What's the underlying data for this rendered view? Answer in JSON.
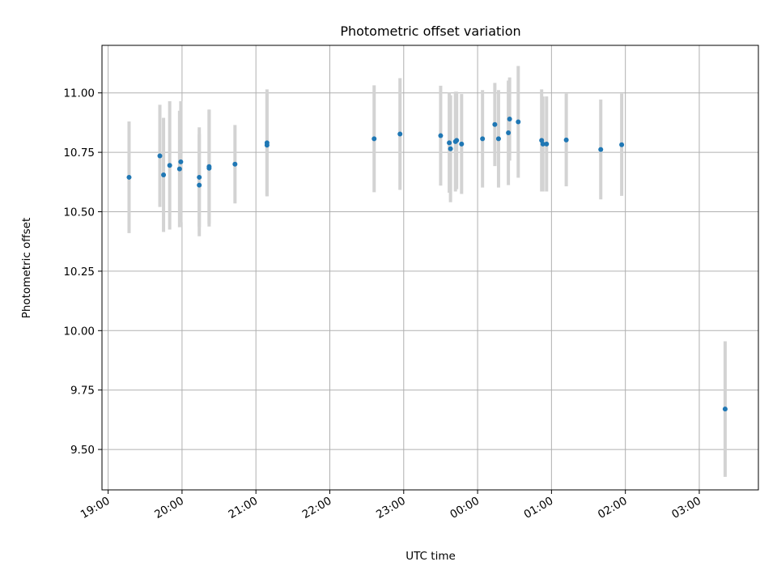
{
  "chart_data": {
    "type": "scatter",
    "title": "Photometric offset variation",
    "xlabel": "UTC time",
    "ylabel": "Photometric offset",
    "grid": true,
    "xlim": [
      "2000-01-01T18:55",
      "2000-01-02T03:48"
    ],
    "ylim": [
      9.33,
      11.2
    ],
    "x_ticks": [
      {
        "t": "2000-01-01T19:00",
        "label": "19:00"
      },
      {
        "t": "2000-01-01T20:00",
        "label": "20:00"
      },
      {
        "t": "2000-01-01T21:00",
        "label": "21:00"
      },
      {
        "t": "2000-01-01T22:00",
        "label": "22:00"
      },
      {
        "t": "2000-01-01T23:00",
        "label": "23:00"
      },
      {
        "t": "2000-01-02T00:00",
        "label": "00:00"
      },
      {
        "t": "2000-01-02T01:00",
        "label": "01:00"
      },
      {
        "t": "2000-01-02T02:00",
        "label": "02:00"
      },
      {
        "t": "2000-01-02T03:00",
        "label": "03:00"
      }
    ],
    "y_ticks": [
      9.5,
      9.75,
      10.0,
      10.25,
      10.5,
      10.75,
      11.0
    ],
    "y_tick_labels": [
      "9.50",
      "9.75",
      "10.00",
      "10.25",
      "10.50",
      "10.75",
      "11.00"
    ],
    "marker_color": "#1f77b4",
    "errorbar_color": "#d3d3d3",
    "series": [
      {
        "points": [
          {
            "t": "2000-01-01T19:17",
            "y": 10.645,
            "err": 0.235
          },
          {
            "t": "2000-01-01T19:42",
            "y": 10.735,
            "err": 0.215
          },
          {
            "t": "2000-01-01T19:45",
            "y": 10.655,
            "err": 0.24
          },
          {
            "t": "2000-01-01T19:50",
            "y": 10.695,
            "err": 0.27
          },
          {
            "t": "2000-01-01T19:58",
            "y": 10.68,
            "err": 0.245
          },
          {
            "t": "2000-01-01T19:59",
            "y": 10.71,
            "err": 0.255
          },
          {
            "t": "2000-01-01T20:14",
            "y": 10.612,
            "err": 0.215
          },
          {
            "t": "2000-01-01T20:14",
            "y": 10.645,
            "err": 0.21
          },
          {
            "t": "2000-01-01T20:22",
            "y": 10.683,
            "err": 0.245
          },
          {
            "t": "2000-01-01T20:22",
            "y": 10.69,
            "err": 0.24
          },
          {
            "t": "2000-01-01T20:43",
            "y": 10.7,
            "err": 0.165
          },
          {
            "t": "2000-01-01T21:09",
            "y": 10.79,
            "err": 0.225
          },
          {
            "t": "2000-01-01T21:09",
            "y": 10.78,
            "err": 0.215
          },
          {
            "t": "2000-01-01T22:36",
            "y": 10.807,
            "err": 0.225
          },
          {
            "t": "2000-01-01T22:57",
            "y": 10.827,
            "err": 0.235
          },
          {
            "t": "2000-01-01T23:30",
            "y": 10.82,
            "err": 0.21
          },
          {
            "t": "2000-01-01T23:37",
            "y": 10.79,
            "err": 0.21
          },
          {
            "t": "2000-01-01T23:38",
            "y": 10.765,
            "err": 0.225
          },
          {
            "t": "2000-01-01T23:42",
            "y": 10.795,
            "err": 0.21
          },
          {
            "t": "2000-01-01T23:43",
            "y": 10.8,
            "err": 0.205
          },
          {
            "t": "2000-01-01T23:47",
            "y": 10.785,
            "err": 0.21
          },
          {
            "t": "2000-01-02T00:04",
            "y": 10.807,
            "err": 0.205
          },
          {
            "t": "2000-01-02T00:14",
            "y": 10.867,
            "err": 0.175
          },
          {
            "t": "2000-01-02T00:17",
            "y": 10.807,
            "err": 0.205
          },
          {
            "t": "2000-01-02T00:25",
            "y": 10.832,
            "err": 0.22
          },
          {
            "t": "2000-01-02T00:26",
            "y": 10.89,
            "err": 0.175
          },
          {
            "t": "2000-01-02T00:33",
            "y": 10.878,
            "err": 0.235
          },
          {
            "t": "2000-01-02T00:52",
            "y": 10.8,
            "err": 0.215
          },
          {
            "t": "2000-01-02T00:53",
            "y": 10.785,
            "err": 0.2
          },
          {
            "t": "2000-01-02T00:56",
            "y": 10.785,
            "err": 0.2
          },
          {
            "t": "2000-01-02T01:12",
            "y": 10.802,
            "err": 0.195
          },
          {
            "t": "2000-01-02T01:40",
            "y": 10.762,
            "err": 0.21
          },
          {
            "t": "2000-01-02T01:57",
            "y": 10.782,
            "err": 0.215
          },
          {
            "t": "2000-01-02T03:21",
            "y": 9.67,
            "err": 0.285
          }
        ]
      }
    ]
  }
}
